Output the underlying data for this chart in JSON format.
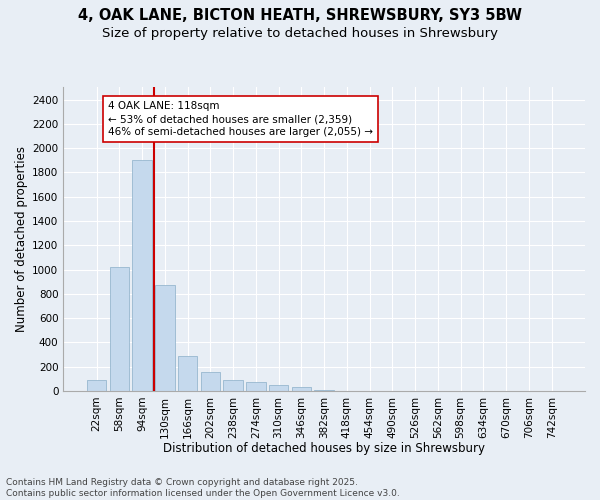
{
  "title_line1": "4, OAK LANE, BICTON HEATH, SHREWSBURY, SY3 5BW",
  "title_line2": "Size of property relative to detached houses in Shrewsbury",
  "xlabel": "Distribution of detached houses by size in Shrewsbury",
  "ylabel": "Number of detached properties",
  "categories": [
    "22sqm",
    "58sqm",
    "94sqm",
    "130sqm",
    "166sqm",
    "202sqm",
    "238sqm",
    "274sqm",
    "310sqm",
    "346sqm",
    "382sqm",
    "418sqm",
    "454sqm",
    "490sqm",
    "526sqm",
    "562sqm",
    "598sqm",
    "634sqm",
    "670sqm",
    "706sqm",
    "742sqm"
  ],
  "bar_values": [
    90,
    1020,
    1900,
    870,
    290,
    155,
    90,
    75,
    50,
    30,
    5,
    0,
    0,
    0,
    0,
    0,
    0,
    0,
    0,
    0,
    0
  ],
  "bar_color": "#c5d9ed",
  "bar_edge_color": "#8aaec8",
  "background_color": "#e8eef5",
  "grid_color": "#ffffff",
  "vline_color": "#cc0000",
  "annotation_text": "4 OAK LANE: 118sqm\n← 53% of detached houses are smaller (2,359)\n46% of semi-detached houses are larger (2,055) →",
  "annotation_box_color": "#ffffff",
  "annotation_border_color": "#cc0000",
  "ylim": [
    0,
    2500
  ],
  "yticks": [
    0,
    200,
    400,
    600,
    800,
    1000,
    1200,
    1400,
    1600,
    1800,
    2000,
    2200,
    2400
  ],
  "footnote": "Contains HM Land Registry data © Crown copyright and database right 2025.\nContains public sector information licensed under the Open Government Licence v3.0.",
  "title_fontsize": 10.5,
  "subtitle_fontsize": 9.5,
  "axis_label_fontsize": 8.5,
  "tick_fontsize": 7.5,
  "annotation_fontsize": 7.5,
  "footnote_fontsize": 6.5
}
